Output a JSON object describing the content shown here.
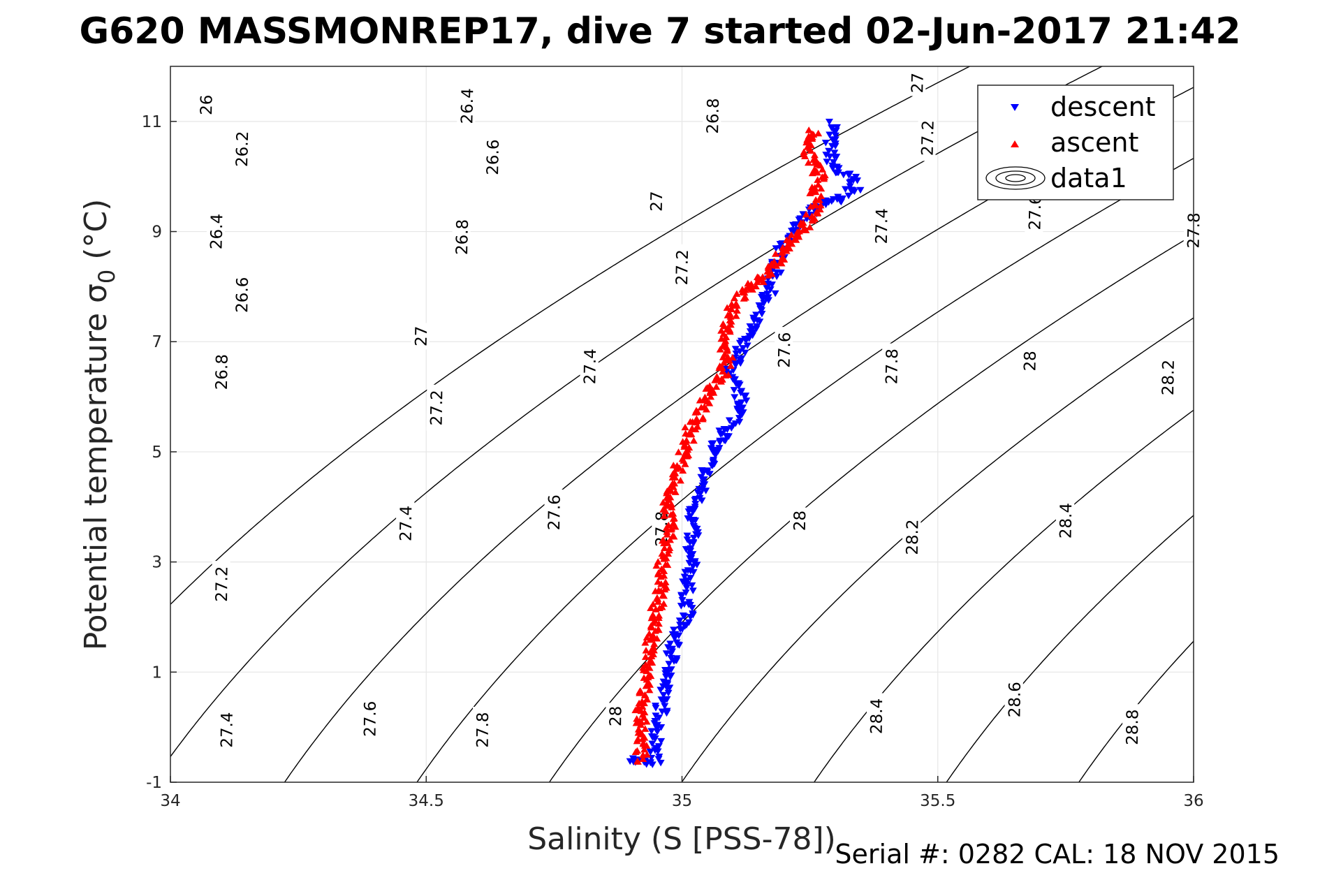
{
  "header": {
    "title": "G620 MASSMONREP17, dive 7 started 02-Jun-2017 21:42"
  },
  "footer": {
    "serial_text": "Serial #: 0282  CAL: 18 NOV 2015"
  },
  "chart_data": {
    "type": "scatter",
    "title": "G620 MASSMONREP17, dive 7 started 02-Jun-2017 21:42",
    "xlabel": "Salinity (S [PSS-78])",
    "ylabel_main": "Potential temperature ",
    "ylabel_symbol": "σ",
    "ylabel_subscript": "0",
    "ylabel_unit": " (°C)",
    "xlim": [
      34,
      36
    ],
    "ylim": [
      -1,
      12
    ],
    "x_ticks": [
      34,
      34.5,
      35,
      35.5,
      36
    ],
    "x_tick_labels": [
      "34",
      "34.5",
      "35",
      "35.5",
      "36"
    ],
    "y_ticks": [
      -1,
      1,
      3,
      5,
      7,
      9,
      11
    ],
    "y_tick_labels": [
      "-1",
      "1",
      "3",
      "5",
      "7",
      "9",
      "11"
    ],
    "grid": true,
    "legend": {
      "placement": "top-right",
      "entries": [
        "descent",
        "ascent",
        "data1"
      ]
    },
    "contour_levels": [
      26.0,
      26.2,
      26.4,
      26.6,
      26.8,
      27.0,
      27.2,
      27.4,
      27.6,
      27.8,
      28.0,
      28.2,
      28.4,
      28.6,
      28.8
    ],
    "contour_labels": [
      {
        "text": "26",
        "s": 34.07,
        "t": 11.3
      },
      {
        "text": "26.4",
        "s": 34.58,
        "t": 11.28
      },
      {
        "text": "26.8",
        "s": 35.06,
        "t": 11.1
      },
      {
        "text": "27",
        "s": 35.46,
        "t": 11.7
      },
      {
        "text": "26.2",
        "s": 34.14,
        "t": 10.5
      },
      {
        "text": "26.6",
        "s": 34.63,
        "t": 10.35
      },
      {
        "text": "27.2",
        "s": 35.48,
        "t": 10.7
      },
      {
        "text": "26.4",
        "s": 34.09,
        "t": 9.0
      },
      {
        "text": "27",
        "s": 34.95,
        "t": 9.55
      },
      {
        "text": "26.8",
        "s": 34.57,
        "t": 8.9
      },
      {
        "text": "27.4",
        "s": 35.39,
        "t": 9.1
      },
      {
        "text": "27.6",
        "s": 35.69,
        "t": 9.35
      },
      {
        "text": "27.8",
        "s": 36.0,
        "t": 9.02
      },
      {
        "text": "26.6",
        "s": 34.14,
        "t": 7.85
      },
      {
        "text": "27.2",
        "s": 35.0,
        "t": 8.35
      },
      {
        "text": "27",
        "s": 34.49,
        "t": 7.1
      },
      {
        "text": "26.8",
        "s": 34.1,
        "t": 6.45
      },
      {
        "text": "27.4",
        "s": 34.82,
        "t": 6.55
      },
      {
        "text": "27.6",
        "s": 35.2,
        "t": 6.85
      },
      {
        "text": "27.8",
        "s": 35.41,
        "t": 6.55
      },
      {
        "text": "28",
        "s": 35.68,
        "t": 6.65
      },
      {
        "text": "28.2",
        "s": 35.95,
        "t": 6.35
      },
      {
        "text": "27.2",
        "s": 34.52,
        "t": 5.8
      },
      {
        "text": "27.4",
        "s": 34.46,
        "t": 3.7
      },
      {
        "text": "27.6",
        "s": 34.75,
        "t": 3.9
      },
      {
        "text": "27.8",
        "s": 34.96,
        "t": 3.6
      },
      {
        "text": "28",
        "s": 35.23,
        "t": 3.75
      },
      {
        "text": "28.2",
        "s": 35.45,
        "t": 3.45
      },
      {
        "text": "28.4",
        "s": 35.75,
        "t": 3.75
      },
      {
        "text": "27.2",
        "s": 34.1,
        "t": 2.6
      },
      {
        "text": "27.4",
        "s": 34.11,
        "t": -0.05
      },
      {
        "text": "27.6",
        "s": 34.39,
        "t": 0.15
      },
      {
        "text": "27.8",
        "s": 34.61,
        "t": -0.05
      },
      {
        "text": "28",
        "s": 34.87,
        "t": 0.2
      },
      {
        "text": "28.4",
        "s": 35.38,
        "t": 0.2
      },
      {
        "text": "28.6",
        "s": 35.65,
        "t": 0.5
      },
      {
        "text": "28.8",
        "s": 35.88,
        "t": 0.0
      }
    ],
    "series": [
      {
        "name": "descent",
        "marker": "triangle-down",
        "color": "#0000ff",
        "path": [
          [
            35.3,
            10.95
          ],
          [
            35.29,
            10.7
          ],
          [
            35.29,
            10.4
          ],
          [
            35.3,
            10.1
          ],
          [
            35.33,
            10.0
          ],
          [
            35.34,
            9.8
          ],
          [
            35.3,
            9.55
          ],
          [
            35.25,
            9.35
          ],
          [
            35.22,
            9.1
          ],
          [
            35.19,
            8.6
          ],
          [
            35.18,
            8.2
          ],
          [
            35.17,
            7.9
          ],
          [
            35.15,
            7.6
          ],
          [
            35.14,
            7.3
          ],
          [
            35.12,
            7.0
          ],
          [
            35.11,
            6.7
          ],
          [
            35.09,
            6.4
          ],
          [
            35.11,
            6.1
          ],
          [
            35.12,
            5.8
          ],
          [
            35.1,
            5.5
          ],
          [
            35.07,
            5.2
          ],
          [
            35.06,
            4.95
          ],
          [
            35.05,
            4.7
          ],
          [
            35.04,
            4.4
          ],
          [
            35.03,
            4.1
          ],
          [
            35.02,
            3.8
          ],
          [
            35.02,
            3.5
          ],
          [
            35.01,
            3.2
          ],
          [
            35.02,
            2.9
          ],
          [
            35.01,
            2.6
          ],
          [
            35.01,
            2.3
          ],
          [
            35.01,
            2.0
          ],
          [
            34.99,
            1.7
          ],
          [
            34.98,
            1.4
          ],
          [
            34.98,
            1.1
          ],
          [
            34.97,
            0.8
          ],
          [
            34.96,
            0.5
          ],
          [
            34.96,
            0.2
          ],
          [
            34.95,
            -0.1
          ],
          [
            34.95,
            -0.4
          ],
          [
            34.95,
            -0.6
          ],
          [
            34.93,
            -0.65
          ],
          [
            34.9,
            -0.6
          ]
        ],
        "jitter": {
          "s": 0.012,
          "t": 0.05
        },
        "count": 420,
        "seed": 7
      },
      {
        "name": "ascent",
        "marker": "triangle-up",
        "color": "#ff0000",
        "path": [
          [
            35.26,
            10.85
          ],
          [
            35.25,
            10.6
          ],
          [
            35.25,
            10.3
          ],
          [
            35.27,
            10.0
          ],
          [
            35.26,
            9.7
          ],
          [
            35.26,
            9.4
          ],
          [
            35.24,
            9.1
          ],
          [
            35.21,
            8.8
          ],
          [
            35.19,
            8.5
          ],
          [
            35.16,
            8.2
          ],
          [
            35.12,
            7.9
          ],
          [
            35.1,
            7.6
          ],
          [
            35.09,
            7.3
          ],
          [
            35.08,
            7.0
          ],
          [
            35.09,
            6.7
          ],
          [
            35.08,
            6.4
          ],
          [
            35.05,
            6.1
          ],
          [
            35.04,
            5.8
          ],
          [
            35.02,
            5.5
          ],
          [
            35.01,
            5.2
          ],
          [
            35.0,
            4.9
          ],
          [
            34.99,
            4.6
          ],
          [
            34.98,
            4.3
          ],
          [
            34.97,
            4.0
          ],
          [
            34.98,
            3.7
          ],
          [
            34.97,
            3.4
          ],
          [
            34.96,
            3.1
          ],
          [
            34.96,
            2.8
          ],
          [
            34.96,
            2.5
          ],
          [
            34.95,
            2.2
          ],
          [
            34.95,
            1.9
          ],
          [
            34.94,
            1.6
          ],
          [
            34.94,
            1.3
          ],
          [
            34.93,
            1.0
          ],
          [
            34.93,
            0.7
          ],
          [
            34.92,
            0.4
          ],
          [
            34.92,
            0.1
          ],
          [
            34.92,
            -0.2
          ],
          [
            34.92,
            -0.5
          ],
          [
            34.92,
            -0.62
          ]
        ],
        "jitter": {
          "s": 0.012,
          "t": 0.05
        },
        "count": 420,
        "seed": 11
      }
    ]
  }
}
